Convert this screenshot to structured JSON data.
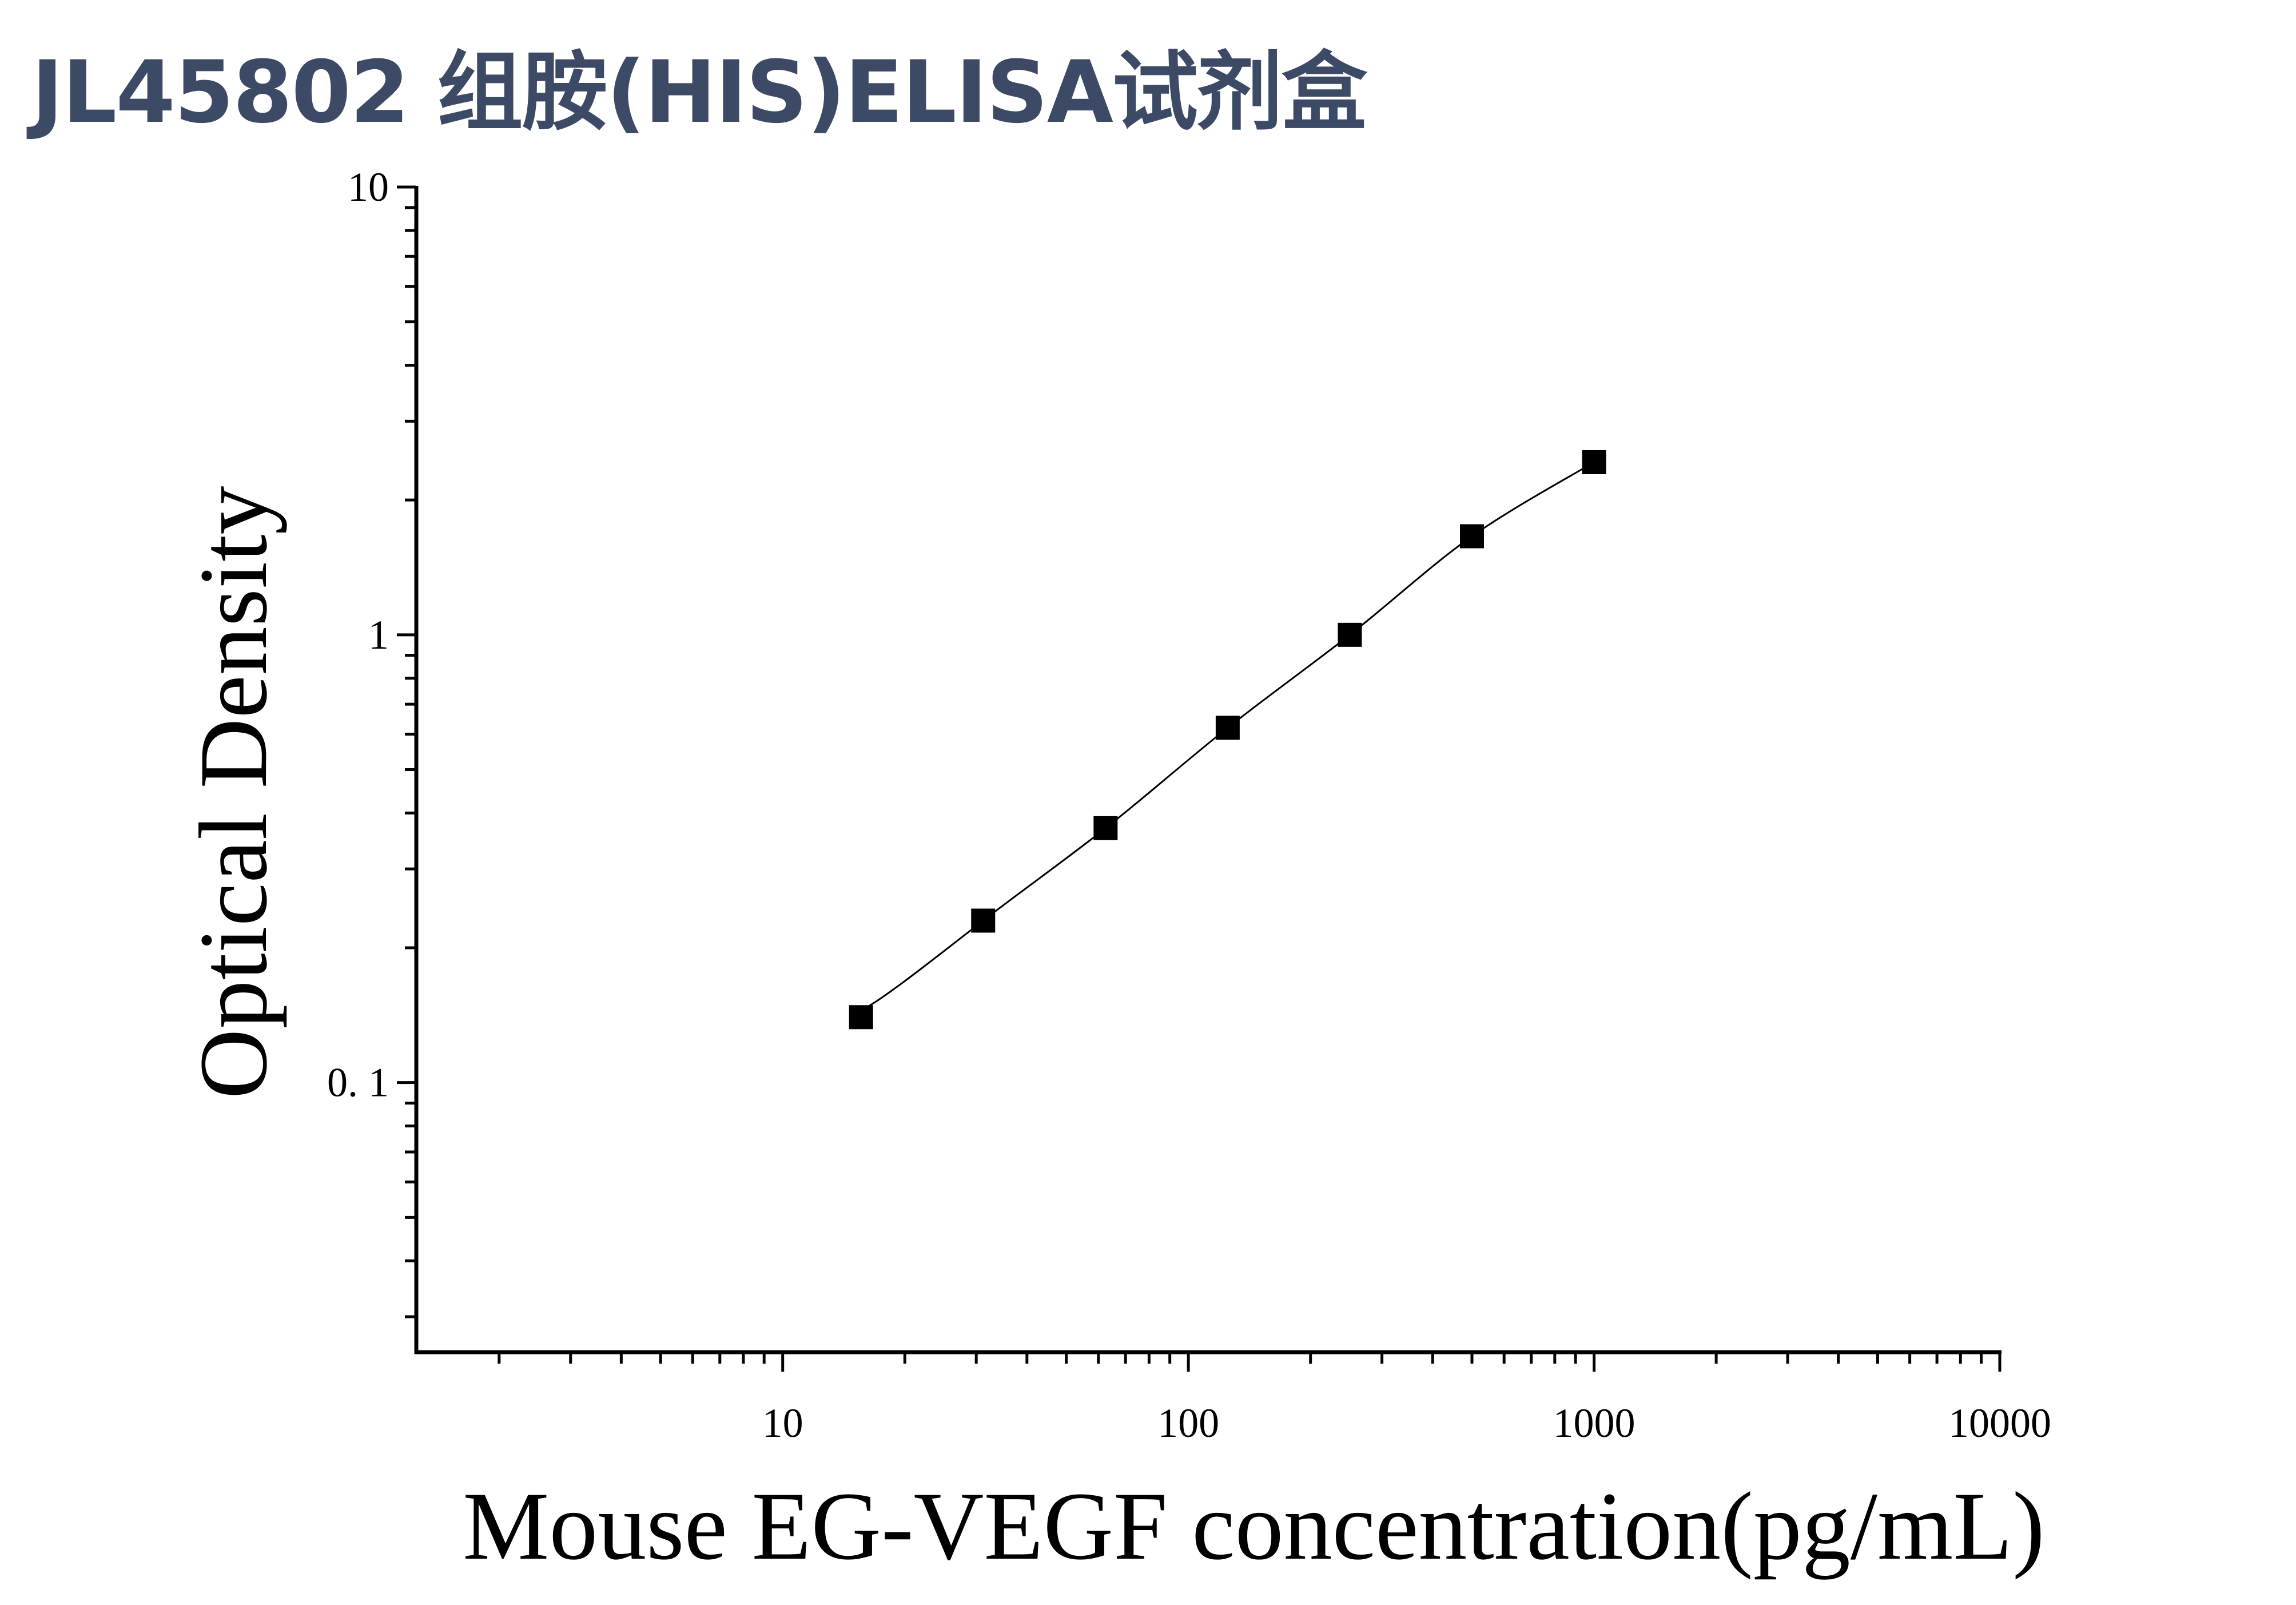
{
  "title": "JL45802 组胺(HIS)ELISA试剂盒",
  "chart_data": {
    "type": "scatter",
    "title": "JL45802 组胺(HIS)ELISA试剂盒",
    "xlabel": "Mouse EG-VEGF concentration(pg/mL)",
    "ylabel": "Optical Density",
    "x_scale": "log",
    "y_scale": "log",
    "xlim": [
      1.25,
      10000
    ],
    "ylim": [
      0.025,
      10
    ],
    "x_ticks": [
      10,
      100,
      1000,
      10000
    ],
    "x_tick_labels": [
      "10",
      "100",
      "1000",
      "10000"
    ],
    "y_ticks": [
      0.1,
      1,
      10
    ],
    "y_tick_labels": [
      "0. 1",
      "1",
      "10"
    ],
    "grid": false,
    "legend": "none",
    "series": [
      {
        "marker": "square",
        "color": "#000000",
        "x": [
          15.6,
          31.2,
          62.5,
          125,
          250,
          500,
          1000
        ],
        "y": [
          0.14,
          0.23,
          0.37,
          0.62,
          1.0,
          1.66,
          2.43
        ]
      }
    ],
    "fit_curve": {
      "type": "smooth",
      "color": "#000000"
    }
  }
}
